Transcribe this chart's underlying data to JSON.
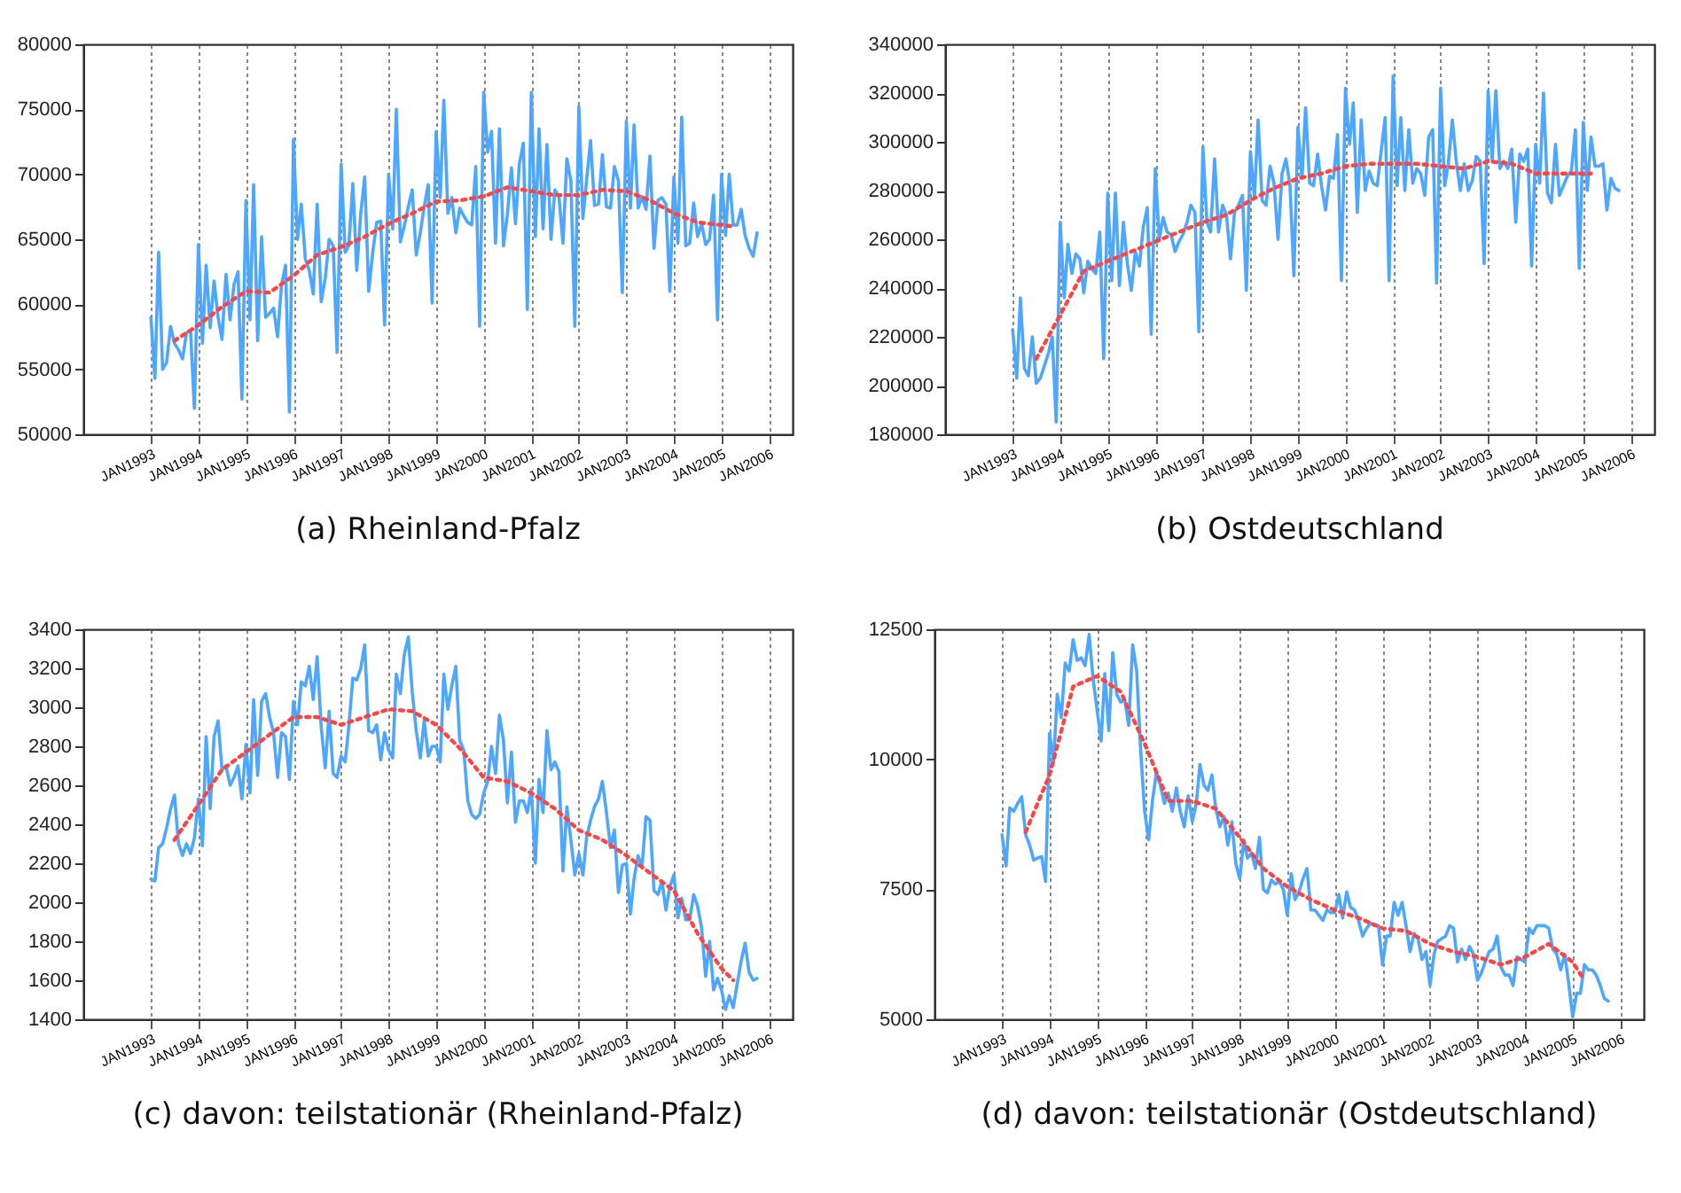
{
  "chart_data": [
    {
      "type": "line",
      "title": "(a) Rheinland-Pfalz",
      "grid": "x",
      "xlim": [
        "1991-08",
        "2006-07"
      ],
      "ylim": [
        50000,
        80000
      ],
      "yticks": [
        50000,
        55000,
        60000,
        65000,
        70000,
        75000,
        80000
      ],
      "xticks": [
        {
          "value": "1993-01",
          "label": "JAN1993"
        },
        {
          "value": "1994-01",
          "label": "JAN1994"
        },
        {
          "value": "1995-01",
          "label": "JAN1995"
        },
        {
          "value": "1996-01",
          "label": "JAN1996"
        },
        {
          "value": "1997-01",
          "label": "JAN1997"
        },
        {
          "value": "1998-01",
          "label": "JAN1998"
        },
        {
          "value": "1999-01",
          "label": "JAN1999"
        },
        {
          "value": "2000-01",
          "label": "JAN2000"
        },
        {
          "value": "2001-01",
          "label": "JAN2001"
        },
        {
          "value": "2002-01",
          "label": "JAN2002"
        },
        {
          "value": "2003-01",
          "label": "JAN2003"
        },
        {
          "value": "2004-01",
          "label": "JAN2004"
        },
        {
          "value": "2005-01",
          "label": "JAN2005"
        },
        {
          "value": "2006-01",
          "label": "JAN2006"
        }
      ],
      "x": [
        "1993-01",
        "1993-02",
        "1993-03",
        "1993-04",
        "1993-05",
        "1993-06",
        "1993-07",
        "1993-08",
        "1993-09",
        "1993-10",
        "1993-11",
        "1993-12",
        "1994-01",
        "1994-02",
        "1994-03",
        "1994-04",
        "1994-05",
        "1994-06",
        "1994-07",
        "1994-08",
        "1994-09",
        "1994-10",
        "1994-11",
        "1994-12",
        "1995-01",
        "1995-02",
        "1995-03",
        "1995-04",
        "1995-05",
        "1995-06",
        "1995-07",
        "1995-08",
        "1995-09",
        "1995-10",
        "1995-11",
        "1995-12",
        "1996-01",
        "1996-02",
        "1996-03",
        "1996-04",
        "1996-05",
        "1996-06",
        "1996-07",
        "1996-08",
        "1996-09",
        "1996-10",
        "1996-11",
        "1996-12",
        "1997-01",
        "1997-02",
        "1997-03",
        "1997-04",
        "1997-05",
        "1997-06",
        "1997-07",
        "1997-08",
        "1997-09",
        "1997-10",
        "1997-11",
        "1997-12",
        "1998-01",
        "1998-02",
        "1998-03",
        "1998-04",
        "1998-05",
        "1998-06",
        "1998-07",
        "1998-08",
        "1998-09",
        "1998-10",
        "1998-11",
        "1998-12",
        "1999-01",
        "1999-02",
        "1999-03",
        "1999-04",
        "1999-05",
        "1999-06",
        "1999-07",
        "1999-08",
        "1999-09",
        "1999-10",
        "1999-11",
        "1999-12",
        "2000-01",
        "2000-02",
        "2000-03",
        "2000-04",
        "2000-05",
        "2000-06",
        "2000-07",
        "2000-08",
        "2000-09",
        "2000-10",
        "2000-11",
        "2000-12",
        "2001-01",
        "2001-02",
        "2001-03",
        "2001-04",
        "2001-05",
        "2001-06",
        "2001-07",
        "2001-08",
        "2001-09",
        "2001-10",
        "2001-11",
        "2001-12",
        "2002-01",
        "2002-02",
        "2002-03",
        "2002-04",
        "2002-05",
        "2002-06",
        "2002-07",
        "2002-08",
        "2002-09",
        "2002-10",
        "2002-11",
        "2002-12",
        "2003-01",
        "2003-02",
        "2003-03",
        "2003-04",
        "2003-05",
        "2003-06",
        "2003-07",
        "2003-08",
        "2003-09",
        "2003-10",
        "2003-11",
        "2003-12",
        "2004-01",
        "2004-02",
        "2004-03",
        "2004-04",
        "2004-05",
        "2004-06",
        "2004-07",
        "2004-08",
        "2004-09",
        "2004-10",
        "2004-11",
        "2004-12",
        "2005-01",
        "2005-02",
        "2005-03",
        "2005-04",
        "2005-05",
        "2005-06",
        "2005-07",
        "2005-08",
        "2005-09",
        "2005-10"
      ],
      "series": [
        {
          "color": "#4da6ff",
          "values": [
            59000,
            54300,
            64000,
            55000,
            55500,
            58300,
            57000,
            56500,
            55800,
            57800,
            58000,
            52000,
            64600,
            57000,
            63000,
            58200,
            61800,
            59000,
            57300,
            62300,
            58800,
            61500,
            62500,
            52700,
            68000,
            58800,
            69200,
            57200,
            65200,
            59000,
            59300,
            59700,
            57500,
            61500,
            63000,
            51700,
            72700,
            65000,
            67700,
            63500,
            62600,
            60800,
            67700,
            60200,
            62000,
            65000,
            64500,
            56300,
            70800,
            64000,
            64500,
            69300,
            62600,
            67000,
            69800,
            61000,
            64000,
            66300,
            66400,
            58400,
            70000,
            65800,
            75000,
            64800,
            66000,
            67500,
            68800,
            63800,
            65500,
            67500,
            69200,
            60100,
            73300,
            68200,
            75700,
            67000,
            68200,
            65500,
            67400,
            66800,
            66300,
            66100,
            70600,
            58300,
            76300,
            71700,
            73300,
            64700,
            73500,
            64500,
            66900,
            70500,
            66200,
            70800,
            72400,
            59600,
            76300,
            65200,
            73500,
            65800,
            72300,
            65000,
            68800,
            68300,
            64700,
            71200,
            69500,
            58300,
            75200,
            66600,
            69500,
            72600,
            67600,
            67700,
            71500,
            67500,
            67400,
            70600,
            69500,
            60900,
            74100,
            67400,
            73800,
            67400,
            68300,
            67300,
            71400,
            64300,
            68000,
            68200,
            67700,
            61000,
            69800,
            64700,
            74400,
            64500,
            64700,
            67800,
            65200,
            66200,
            64600,
            65000,
            68400,
            58800,
            70000,
            65300,
            70000,
            66100,
            66100,
            67300,
            65300,
            64300,
            63700,
            65500
          ]
        },
        {
          "type": "line",
          "color": "#ff4444",
          "line_style": "dotted",
          "x": [
            "1993-07",
            "1994-01",
            "1994-07",
            "1995-01",
            "1995-07",
            "1996-01",
            "1996-07",
            "1997-01",
            "1997-07",
            "1998-01",
            "1998-07",
            "1999-01",
            "1999-07",
            "2000-01",
            "2000-07",
            "2001-01",
            "2001-07",
            "2002-01",
            "2002-07",
            "2003-01",
            "2003-07",
            "2004-01",
            "2004-07",
            "2005-01",
            "2005-04"
          ],
          "values": [
            57200,
            58400,
            59800,
            61000,
            60900,
            62200,
            63800,
            64400,
            65200,
            66200,
            67000,
            67900,
            68000,
            68300,
            69000,
            68700,
            68400,
            68400,
            68800,
            68700,
            68000,
            67000,
            66300,
            66100,
            66000
          ]
        }
      ]
    },
    {
      "type": "line",
      "title": "(b) Ostdeutschland",
      "grid": "x",
      "xlim": [
        "1991-08",
        "2006-07"
      ],
      "ylim": [
        180000,
        340000
      ],
      "yticks": [
        180000,
        200000,
        220000,
        240000,
        260000,
        280000,
        300000,
        320000,
        340000
      ],
      "xticks": [
        {
          "value": "1993-01",
          "label": "JAN1993"
        },
        {
          "value": "1994-01",
          "label": "JAN1994"
        },
        {
          "value": "1995-01",
          "label": "JAN1995"
        },
        {
          "value": "1996-01",
          "label": "JAN1996"
        },
        {
          "value": "1997-01",
          "label": "JAN1997"
        },
        {
          "value": "1998-01",
          "label": "JAN1998"
        },
        {
          "value": "1999-01",
          "label": "JAN1999"
        },
        {
          "value": "2000-01",
          "label": "JAN2000"
        },
        {
          "value": "2001-01",
          "label": "JAN2001"
        },
        {
          "value": "2002-01",
          "label": "JAN2002"
        },
        {
          "value": "2003-01",
          "label": "JAN2003"
        },
        {
          "value": "2004-01",
          "label": "JAN2004"
        },
        {
          "value": "2005-01",
          "label": "JAN2005"
        },
        {
          "value": "2006-01",
          "label": "JAN2006"
        }
      ],
      "x": [
        "1993-01",
        "1993-02",
        "1993-03",
        "1993-04",
        "1993-05",
        "1993-06",
        "1993-07",
        "1993-08",
        "1993-09",
        "1993-10",
        "1993-11",
        "1993-12",
        "1994-01",
        "1994-02",
        "1994-03",
        "1994-04",
        "1994-05",
        "1994-06",
        "1994-07",
        "1994-08",
        "1994-09",
        "1994-10",
        "1994-11",
        "1994-12",
        "1995-01",
        "1995-02",
        "1995-03",
        "1995-04",
        "1995-05",
        "1995-06",
        "1995-07",
        "1995-08",
        "1995-09",
        "1995-10",
        "1995-11",
        "1995-12",
        "1996-01",
        "1996-02",
        "1996-03",
        "1996-04",
        "1996-05",
        "1996-06",
        "1996-07",
        "1996-08",
        "1996-09",
        "1996-10",
        "1996-11",
        "1996-12",
        "1997-01",
        "1997-02",
        "1997-03",
        "1997-04",
        "1997-05",
        "1997-06",
        "1997-07",
        "1997-08",
        "1997-09",
        "1997-10",
        "1997-11",
        "1997-12",
        "1998-01",
        "1998-02",
        "1998-03",
        "1998-04",
        "1998-05",
        "1998-06",
        "1998-07",
        "1998-08",
        "1998-09",
        "1998-10",
        "1998-11",
        "1998-12",
        "1999-01",
        "1999-02",
        "1999-03",
        "1999-04",
        "1999-05",
        "1999-06",
        "1999-07",
        "1999-08",
        "1999-09",
        "1999-10",
        "1999-11",
        "1999-12",
        "2000-01",
        "2000-02",
        "2000-03",
        "2000-04",
        "2000-05",
        "2000-06",
        "2000-07",
        "2000-08",
        "2000-09",
        "2000-10",
        "2000-11",
        "2000-12",
        "2001-01",
        "2001-02",
        "2001-03",
        "2001-04",
        "2001-05",
        "2001-06",
        "2001-07",
        "2001-08",
        "2001-09",
        "2001-10",
        "2001-11",
        "2001-12",
        "2002-01",
        "2002-02",
        "2002-03",
        "2002-04",
        "2002-05",
        "2002-06",
        "2002-07",
        "2002-08",
        "2002-09",
        "2002-10",
        "2002-11",
        "2002-12",
        "2003-01",
        "2003-02",
        "2003-03",
        "2003-04",
        "2003-05",
        "2003-06",
        "2003-07",
        "2003-08",
        "2003-09",
        "2003-10",
        "2003-11",
        "2003-12",
        "2004-01",
        "2004-02",
        "2004-03",
        "2004-04",
        "2004-05",
        "2004-06",
        "2004-07",
        "2004-08",
        "2004-09",
        "2004-10",
        "2004-11",
        "2004-12",
        "2005-01",
        "2005-02",
        "2005-03",
        "2005-04",
        "2005-05",
        "2005-06",
        "2005-07",
        "2005-08",
        "2005-09",
        "2005-10"
      ],
      "series": [
        {
          "color": "#4da6ff",
          "values": [
            223000,
            203000,
            236000,
            207000,
            204000,
            220000,
            201000,
            203000,
            208000,
            213000,
            220000,
            185000,
            267000,
            236000,
            258000,
            246000,
            254000,
            252000,
            238000,
            251000,
            248000,
            246000,
            263000,
            211000,
            279000,
            243000,
            279000,
            241000,
            267000,
            250000,
            239000,
            255000,
            249000,
            265000,
            273000,
            221000,
            289000,
            260000,
            269000,
            263000,
            262000,
            255000,
            259000,
            262000,
            267000,
            274000,
            271000,
            222000,
            298000,
            267000,
            263000,
            293000,
            263000,
            274000,
            270000,
            252000,
            271000,
            274000,
            278000,
            239000,
            296000,
            277000,
            309000,
            276000,
            274000,
            290000,
            283000,
            260000,
            287000,
            293000,
            282000,
            245000,
            306000,
            285000,
            314000,
            283000,
            282000,
            295000,
            282000,
            272000,
            286000,
            285000,
            303000,
            243000,
            322000,
            299000,
            316000,
            271000,
            309000,
            280000,
            288000,
            283000,
            282000,
            296000,
            310000,
            243000,
            327000,
            282000,
            310000,
            280000,
            305000,
            283000,
            289000,
            287000,
            278000,
            302000,
            305000,
            242000,
            322000,
            282000,
            291000,
            309000,
            292000,
            280000,
            291000,
            280000,
            284000,
            294000,
            292000,
            250000,
            321000,
            292000,
            321000,
            289000,
            292000,
            289000,
            297000,
            267000,
            295000,
            292000,
            297000,
            249000,
            299000,
            283000,
            320000,
            279000,
            275000,
            299000,
            278000,
            282000,
            286000,
            288000,
            305000,
            248000,
            308000,
            280000,
            302000,
            290000,
            290000,
            291000,
            272000,
            285000,
            281000,
            280000
          ]
        },
        {
          "type": "line",
          "color": "#ff4444",
          "line_style": "dotted",
          "x": [
            "1993-07",
            "1994-01",
            "1994-07",
            "1995-01",
            "1995-07",
            "1996-01",
            "1996-07",
            "1997-01",
            "1997-07",
            "1998-01",
            "1998-07",
            "1999-01",
            "1999-07",
            "2000-01",
            "2000-07",
            "2001-01",
            "2001-07",
            "2002-01",
            "2002-07",
            "2003-01",
            "2003-07",
            "2004-01",
            "2004-07",
            "2005-01",
            "2005-03"
          ],
          "values": [
            211000,
            229000,
            247000,
            251000,
            255000,
            259000,
            263000,
            267000,
            270000,
            276000,
            281000,
            285000,
            287000,
            290000,
            291000,
            291000,
            291000,
            290000,
            289000,
            292000,
            291000,
            287000,
            287000,
            287000,
            287000
          ]
        }
      ]
    },
    {
      "type": "line",
      "title": "(c) davon: teilstationär (Rheinland-Pfalz)",
      "grid": "x",
      "xlim": [
        "1991-08",
        "2006-07"
      ],
      "ylim": [
        1400,
        3400
      ],
      "yticks": [
        1400,
        1600,
        1800,
        2000,
        2200,
        2400,
        2600,
        2800,
        3000,
        3200,
        3400
      ],
      "xticks": [
        {
          "value": "1993-01",
          "label": "JAN1993"
        },
        {
          "value": "1994-01",
          "label": "JAN1994"
        },
        {
          "value": "1995-01",
          "label": "JAN1995"
        },
        {
          "value": "1996-01",
          "label": "JAN1996"
        },
        {
          "value": "1997-01",
          "label": "JAN1997"
        },
        {
          "value": "1998-01",
          "label": "JAN1998"
        },
        {
          "value": "1999-01",
          "label": "JAN1999"
        },
        {
          "value": "2000-01",
          "label": "JAN2000"
        },
        {
          "value": "2001-01",
          "label": "JAN2001"
        },
        {
          "value": "2002-01",
          "label": "JAN2002"
        },
        {
          "value": "2003-01",
          "label": "JAN2003"
        },
        {
          "value": "2004-01",
          "label": "JAN2004"
        },
        {
          "value": "2005-01",
          "label": "JAN2005"
        },
        {
          "value": "2006-01",
          "label": "JAN2006"
        }
      ],
      "x": [
        "1993-01",
        "1993-02",
        "1993-03",
        "1993-04",
        "1993-05",
        "1993-06",
        "1993-07",
        "1993-08",
        "1993-09",
        "1993-10",
        "1993-11",
        "1993-12",
        "1994-01",
        "1994-02",
        "1994-03",
        "1994-04",
        "1994-05",
        "1994-06",
        "1994-07",
        "1994-08",
        "1994-09",
        "1994-10",
        "1994-11",
        "1994-12",
        "1995-01",
        "1995-02",
        "1995-03",
        "1995-04",
        "1995-05",
        "1995-06",
        "1995-07",
        "1995-08",
        "1995-09",
        "1995-10",
        "1995-11",
        "1995-12",
        "1996-01",
        "1996-02",
        "1996-03",
        "1996-04",
        "1996-05",
        "1996-06",
        "1996-07",
        "1996-08",
        "1996-09",
        "1996-10",
        "1996-11",
        "1996-12",
        "1997-01",
        "1997-02",
        "1997-03",
        "1997-04",
        "1997-05",
        "1997-06",
        "1997-07",
        "1997-08",
        "1997-09",
        "1997-10",
        "1997-11",
        "1997-12",
        "1998-01",
        "1998-02",
        "1998-03",
        "1998-04",
        "1998-05",
        "1998-06",
        "1998-07",
        "1998-08",
        "1998-09",
        "1998-10",
        "1998-11",
        "1998-12",
        "1999-01",
        "1999-02",
        "1999-03",
        "1999-04",
        "1999-05",
        "1999-06",
        "1999-07",
        "1999-08",
        "1999-09",
        "1999-10",
        "1999-11",
        "1999-12",
        "2000-01",
        "2000-02",
        "2000-03",
        "2000-04",
        "2000-05",
        "2000-06",
        "2000-07",
        "2000-08",
        "2000-09",
        "2000-10",
        "2000-11",
        "2000-12",
        "2001-01",
        "2001-02",
        "2001-03",
        "2001-04",
        "2001-05",
        "2001-06",
        "2001-07",
        "2001-08",
        "2001-09",
        "2001-10",
        "2001-11",
        "2001-12",
        "2002-01",
        "2002-02",
        "2002-03",
        "2002-04",
        "2002-05",
        "2002-06",
        "2002-07",
        "2002-08",
        "2002-09",
        "2002-10",
        "2002-11",
        "2002-12",
        "2003-01",
        "2003-02",
        "2003-03",
        "2003-04",
        "2003-05",
        "2003-06",
        "2003-07",
        "2003-08",
        "2003-09",
        "2003-10",
        "2003-11",
        "2003-12",
        "2004-01",
        "2004-02",
        "2004-03",
        "2004-04",
        "2004-05",
        "2004-06",
        "2004-07",
        "2004-08",
        "2004-09",
        "2004-10",
        "2004-11",
        "2004-12",
        "2005-01",
        "2005-02",
        "2005-03",
        "2005-04",
        "2005-05",
        "2005-06",
        "2005-07",
        "2005-08",
        "2005-09",
        "2005-10"
      ],
      "series": [
        {
          "color": "#4da6ff",
          "values": [
            2120,
            2110,
            2280,
            2300,
            2380,
            2480,
            2550,
            2300,
            2240,
            2300,
            2250,
            2330,
            2530,
            2290,
            2850,
            2480,
            2850,
            2930,
            2680,
            2700,
            2600,
            2640,
            2700,
            2530,
            2810,
            2560,
            3040,
            2650,
            3030,
            3070,
            2950,
            2870,
            2640,
            2870,
            2850,
            2630,
            3030,
            2910,
            3130,
            3110,
            3210,
            3040,
            3260,
            2900,
            2690,
            2980,
            2660,
            2640,
            2750,
            2720,
            2900,
            3150,
            3140,
            3200,
            3320,
            2880,
            2870,
            2910,
            2730,
            2870,
            2780,
            2740,
            3170,
            3070,
            3270,
            3360,
            3080,
            2880,
            2740,
            2930,
            2750,
            2800,
            2800,
            2720,
            3170,
            2990,
            3110,
            3210,
            2830,
            2780,
            2520,
            2450,
            2430,
            2450,
            2560,
            2620,
            2800,
            2660,
            2960,
            2830,
            2510,
            2770,
            2410,
            2520,
            2520,
            2460,
            2580,
            2200,
            2630,
            2460,
            2880,
            2680,
            2720,
            2670,
            2160,
            2490,
            2320,
            2140,
            2250,
            2140,
            2330,
            2420,
            2490,
            2530,
            2620,
            2460,
            2280,
            2370,
            2050,
            2190,
            2200,
            1940,
            2120,
            2240,
            2180,
            2440,
            2420,
            2060,
            2040,
            2110,
            1960,
            2080,
            2140,
            1920,
            2020,
            1910,
            1910,
            2040,
            1980,
            1870,
            1620,
            1800,
            1550,
            1610,
            1550,
            1450,
            1520,
            1460,
            1580,
            1700,
            1790,
            1640,
            1600,
            1610
          ]
        },
        {
          "type": "line",
          "color": "#ff4444",
          "line_style": "dotted",
          "x": [
            "1993-07",
            "1994-01",
            "1994-07",
            "1995-01",
            "1995-07",
            "1996-01",
            "1996-07",
            "1997-01",
            "1997-07",
            "1998-01",
            "1998-07",
            "1999-01",
            "1999-07",
            "2000-01",
            "2000-07",
            "2001-01",
            "2001-07",
            "2002-01",
            "2002-07",
            "2003-01",
            "2003-07",
            "2004-01",
            "2004-07",
            "2005-01",
            "2005-04"
          ],
          "values": [
            2320,
            2500,
            2680,
            2770,
            2860,
            2950,
            2950,
            2910,
            2950,
            2990,
            2980,
            2910,
            2790,
            2640,
            2620,
            2560,
            2480,
            2370,
            2320,
            2240,
            2150,
            2060,
            1840,
            1660,
            1600
          ]
        }
      ]
    },
    {
      "type": "line",
      "title": "(d) davon: teilstationär (Ostdeutschland)",
      "grid": "x",
      "xlim": [
        "1991-08",
        "2006-07"
      ],
      "ylim": [
        5000,
        12500
      ],
      "yticks": [
        5000,
        7500,
        10000,
        12500
      ],
      "xticks": [
        {
          "value": "1993-01",
          "label": "JAN1993"
        },
        {
          "value": "1994-01",
          "label": "JAN1994"
        },
        {
          "value": "1995-01",
          "label": "JAN1995"
        },
        {
          "value": "1996-01",
          "label": "JAN1996"
        },
        {
          "value": "1997-01",
          "label": "JAN1997"
        },
        {
          "value": "1998-01",
          "label": "JAN1998"
        },
        {
          "value": "1999-01",
          "label": "JAN1999"
        },
        {
          "value": "2000-01",
          "label": "JAN2000"
        },
        {
          "value": "2001-01",
          "label": "JAN2001"
        },
        {
          "value": "2002-01",
          "label": "JAN2002"
        },
        {
          "value": "2003-01",
          "label": "JAN2003"
        },
        {
          "value": "2004-01",
          "label": "JAN2004"
        },
        {
          "value": "2005-01",
          "label": "JAN2005"
        },
        {
          "value": "2006-01",
          "label": "JAN2006"
        }
      ],
      "x": [
        "1993-01",
        "1993-02",
        "1993-03",
        "1993-04",
        "1993-05",
        "1993-06",
        "1993-07",
        "1993-08",
        "1993-09",
        "1993-10",
        "1993-11",
        "1993-12",
        "1994-01",
        "1994-02",
        "1994-03",
        "1994-04",
        "1994-05",
        "1994-06",
        "1994-07",
        "1994-08",
        "1994-09",
        "1994-10",
        "1994-11",
        "1994-12",
        "1995-01",
        "1995-02",
        "1995-03",
        "1995-04",
        "1995-05",
        "1995-06",
        "1995-07",
        "1995-08",
        "1995-09",
        "1995-10",
        "1995-11",
        "1995-12",
        "1996-01",
        "1996-02",
        "1996-03",
        "1996-04",
        "1996-05",
        "1996-06",
        "1996-07",
        "1996-08",
        "1996-09",
        "1996-10",
        "1996-11",
        "1996-12",
        "1997-01",
        "1997-02",
        "1997-03",
        "1997-04",
        "1997-05",
        "1997-06",
        "1997-07",
        "1997-08",
        "1997-09",
        "1997-10",
        "1997-11",
        "1997-12",
        "1998-01",
        "1998-02",
        "1998-03",
        "1998-04",
        "1998-05",
        "1998-06",
        "1998-07",
        "1998-08",
        "1998-09",
        "1998-10",
        "1998-11",
        "1998-12",
        "1999-01",
        "1999-02",
        "1999-03",
        "1999-04",
        "1999-05",
        "1999-06",
        "1999-07",
        "1999-08",
        "1999-09",
        "1999-10",
        "1999-11",
        "1999-12",
        "2000-01",
        "2000-02",
        "2000-03",
        "2000-04",
        "2000-05",
        "2000-06",
        "2000-07",
        "2000-08",
        "2000-09",
        "2000-10",
        "2000-11",
        "2000-12",
        "2001-01",
        "2001-02",
        "2001-03",
        "2001-04",
        "2001-05",
        "2001-06",
        "2001-07",
        "2001-08",
        "2001-09",
        "2001-10",
        "2001-11",
        "2001-12",
        "2002-01",
        "2002-02",
        "2002-03",
        "2002-04",
        "2002-05",
        "2002-06",
        "2002-07",
        "2002-08",
        "2002-09",
        "2002-10",
        "2002-11",
        "2002-12",
        "2003-01",
        "2003-02",
        "2003-03",
        "2003-04",
        "2003-05",
        "2003-06",
        "2003-07",
        "2003-08",
        "2003-09",
        "2003-10",
        "2003-11",
        "2003-12",
        "2004-01",
        "2004-02",
        "2004-03",
        "2004-04",
        "2004-05",
        "2004-06",
        "2004-07",
        "2004-08",
        "2004-09",
        "2004-10",
        "2004-11",
        "2004-12",
        "2005-01",
        "2005-02",
        "2005-03",
        "2005-04",
        "2005-05",
        "2005-06",
        "2005-07",
        "2005-08",
        "2005-09",
        "2005-10"
      ],
      "series": [
        {
          "color": "#4da6ff",
          "values": [
            8550,
            7950,
            9070,
            9000,
            9150,
            9280,
            8550,
            8350,
            8060,
            8100,
            8130,
            7650,
            10500,
            9950,
            11250,
            10800,
            11850,
            11700,
            12300,
            11900,
            11950,
            11800,
            12400,
            11550,
            10950,
            10350,
            11650,
            10550,
            12050,
            11250,
            11100,
            11150,
            10650,
            12200,
            11700,
            10200,
            9000,
            8450,
            9200,
            9750,
            9500,
            9150,
            9350,
            9000,
            9450,
            9000,
            8700,
            9300,
            8800,
            9150,
            9900,
            9500,
            9400,
            9700,
            9050,
            8700,
            8900,
            8350,
            8800,
            8000,
            7700,
            8450,
            8100,
            8200,
            7900,
            8500,
            7500,
            7430,
            7680,
            7600,
            7650,
            7500,
            7000,
            7800,
            7300,
            7450,
            7700,
            7900,
            7100,
            7100,
            7000,
            6900,
            7100,
            7050,
            7050,
            7400,
            6950,
            7450,
            7150,
            7100,
            6900,
            6600,
            6750,
            6850,
            6800,
            6800,
            6050,
            6600,
            6600,
            7250,
            7000,
            7250,
            6800,
            6300,
            6650,
            6550,
            6150,
            6300,
            5650,
            6250,
            6500,
            6550,
            6600,
            6800,
            6750,
            6100,
            6350,
            6150,
            6400,
            6250,
            5750,
            5900,
            6100,
            6300,
            6350,
            6600,
            6000,
            5850,
            5850,
            5650,
            6200,
            6150,
            6100,
            6750,
            6650,
            6800,
            6800,
            6800,
            6750,
            6350,
            6250,
            5950,
            6250,
            5700,
            5050,
            5500,
            5500,
            6050,
            5950,
            5950,
            5850,
            5650,
            5400,
            5350
          ]
        },
        {
          "type": "line",
          "color": "#ff4444",
          "line_style": "dotted",
          "x": [
            "1993-07",
            "1994-01",
            "1994-07",
            "1995-01",
            "1995-07",
            "1996-01",
            "1996-07",
            "1997-01",
            "1997-07",
            "1998-01",
            "1998-07",
            "1999-01",
            "1999-07",
            "2000-01",
            "2000-07",
            "2001-01",
            "2001-07",
            "2002-01",
            "2002-07",
            "2003-01",
            "2003-07",
            "2004-01",
            "2004-07",
            "2005-01",
            "2005-04"
          ],
          "values": [
            8600,
            9700,
            11400,
            11600,
            11300,
            10300,
            9200,
            9200,
            9050,
            8500,
            7900,
            7550,
            7300,
            7100,
            6950,
            6750,
            6700,
            6450,
            6300,
            6200,
            6050,
            6200,
            6450,
            6100,
            5750
          ]
        }
      ]
    }
  ]
}
